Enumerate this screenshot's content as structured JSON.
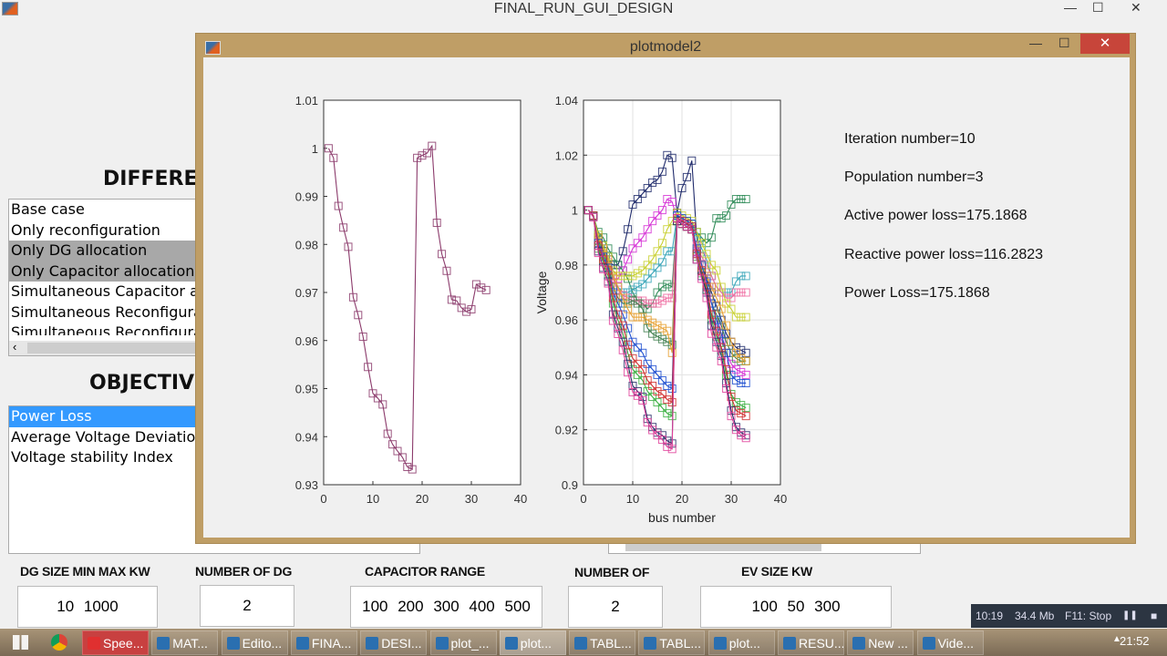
{
  "main_window": {
    "title": "FINAL_RUN_GUI_DESIGN",
    "minimize": "—",
    "maximize": "☐",
    "close": "✕"
  },
  "gui": {
    "heading1": "DIFFERE",
    "cases": [
      "Base case",
      "Only reconfiguration",
      "Only DG allocation",
      "Only Capacitor allocation",
      "Simultaneous Capacitor a",
      "Simultaneous Reconfigura",
      "Simultaneous Reconfigura"
    ],
    "selected_cases": [
      "Only DG allocation",
      "Only Capacitor allocation"
    ],
    "heading2": "OBJECTIV",
    "objectives": [
      "Power Loss",
      "Average Voltage Deviation",
      "Voltage stability Index"
    ],
    "selected_objective": "Power Loss",
    "fields": [
      {
        "label": "DG SIZE MIN MAX KW",
        "value": "10 1000"
      },
      {
        "label": "NUMBER OF DG",
        "value": "2"
      },
      {
        "label": "CAPACITOR RANGE",
        "value": "100 200 300 400 500"
      },
      {
        "label": "NUMBER OF",
        "value": "2"
      },
      {
        "label": "EV SIZE KW",
        "value": "100 50 300"
      }
    ]
  },
  "plot_window": {
    "title": "plotmodel2",
    "minimize": "—",
    "maximize": "☐",
    "close": "✕",
    "info": [
      "Iteration number=10",
      "Population number=3",
      "Active power loss=175.1868",
      "Reactive power loss=116.2823",
      "Power Loss=175.1868"
    ]
  },
  "chart_data": [
    {
      "type": "line",
      "marker": "square",
      "xlim": [
        0,
        40
      ],
      "ylim": [
        0.93,
        1.01
      ],
      "grid": false,
      "xticks": [
        "0",
        "10",
        "20",
        "30",
        "40"
      ],
      "yticks": [
        "0.93",
        "0.94",
        "0.95",
        "0.96",
        "0.97",
        "0.98",
        "0.99",
        "1",
        "1.01"
      ],
      "xlabel": "",
      "ylabel": "",
      "series": [
        {
          "color": "#8b3a6b",
          "x": [
            1,
            2,
            3,
            4,
            5,
            6,
            7,
            8,
            9,
            10,
            11,
            12,
            13,
            14,
            15,
            16,
            17,
            18,
            19,
            20,
            21,
            22,
            23,
            24,
            25,
            26,
            27,
            28,
            29,
            30,
            31,
            32,
            33
          ],
          "values": [
            1.0,
            0.998,
            0.988,
            0.9835,
            0.9795,
            0.969,
            0.9653,
            0.9608,
            0.9545,
            0.949,
            0.948,
            0.9467,
            0.9406,
            0.9384,
            0.937,
            0.9357,
            0.9337,
            0.9332,
            0.998,
            0.9985,
            0.999,
            1.0005,
            0.9845,
            0.978,
            0.9745,
            0.9685,
            0.9683,
            0.9668,
            0.966,
            0.9665,
            0.9717,
            0.971,
            0.9705
          ]
        }
      ]
    },
    {
      "type": "line",
      "marker": "square",
      "xlim": [
        0,
        40
      ],
      "ylim": [
        0.9,
        1.04
      ],
      "grid": true,
      "xticks": [
        "0",
        "10",
        "20",
        "30",
        "40"
      ],
      "yticks": [
        "0.9",
        "0.92",
        "0.94",
        "0.96",
        "0.98",
        "1",
        "1.02",
        "1.04"
      ],
      "xlabel": "bus number",
      "ylabel": "Voltage",
      "series": [
        {
          "color": "#1f2a6b",
          "values": [
            1.0,
            0.998,
            0.99,
            0.985,
            0.982,
            0.98,
            0.98,
            0.985,
            0.993,
            1.002,
            1.004,
            1.006,
            1.008,
            1.01,
            1.011,
            1.014,
            1.02,
            1.019,
            0.999,
            1.008,
            1.012,
            1.018,
            0.99,
            0.98,
            0.975,
            0.97,
            0.965,
            0.96,
            0.955,
            0.952,
            0.95,
            0.949,
            0.948
          ]
        },
        {
          "color": "#2e8b57",
          "values": [
            1.0,
            0.998,
            0.992,
            0.99,
            0.986,
            0.983,
            0.98,
            0.978,
            0.975,
            0.97,
            0.967,
            0.966,
            0.964,
            0.966,
            0.97,
            0.972,
            0.973,
            0.972,
            0.998,
            0.997,
            0.996,
            0.995,
            0.992,
            0.99,
            0.988,
            0.99,
            0.997,
            0.997,
            0.998,
            1.002,
            1.004,
            1.004,
            1.004
          ]
        },
        {
          "color": "#d633d6",
          "values": [
            1.0,
            0.998,
            0.988,
            0.984,
            0.98,
            0.975,
            0.975,
            0.978,
            0.982,
            0.986,
            0.988,
            0.99,
            0.993,
            0.996,
            0.998,
            1.0,
            1.004,
            1.003,
            0.997,
            0.995,
            0.994,
            0.993,
            0.985,
            0.978,
            0.972,
            0.962,
            0.958,
            0.953,
            0.948,
            0.944,
            0.942,
            0.941,
            0.94
          ]
        },
        {
          "color": "#3aa6b9",
          "values": [
            1.0,
            0.998,
            0.99,
            0.986,
            0.982,
            0.976,
            0.972,
            0.97,
            0.97,
            0.971,
            0.972,
            0.973,
            0.975,
            0.977,
            0.979,
            0.981,
            0.985,
            0.985,
            0.998,
            0.997,
            0.996,
            0.995,
            0.99,
            0.986,
            0.982,
            0.976,
            0.972,
            0.97,
            0.97,
            0.97,
            0.974,
            0.976,
            0.976
          ]
        },
        {
          "color": "#ef6aa0",
          "values": [
            1.0,
            0.998,
            0.989,
            0.985,
            0.981,
            0.975,
            0.971,
            0.969,
            0.968,
            0.967,
            0.967,
            0.967,
            0.966,
            0.966,
            0.966,
            0.967,
            0.968,
            0.968,
            0.996,
            0.995,
            0.994,
            0.993,
            0.987,
            0.983,
            0.98,
            0.976,
            0.972,
            0.97,
            0.968,
            0.968,
            0.97,
            0.97,
            0.97
          ]
        },
        {
          "color": "#c8d030",
          "values": [
            1.0,
            0.998,
            0.991,
            0.987,
            0.983,
            0.978,
            0.976,
            0.976,
            0.976,
            0.976,
            0.977,
            0.978,
            0.98,
            0.982,
            0.985,
            0.988,
            0.993,
            0.996,
            0.999,
            0.998,
            0.997,
            0.996,
            0.992,
            0.988,
            0.984,
            0.98,
            0.978,
            0.972,
            0.966,
            0.964,
            0.961,
            0.961,
            0.961
          ]
        },
        {
          "color": "#3f7f4f",
          "values": [
            1.0,
            0.998,
            0.989,
            0.985,
            0.98,
            0.972,
            0.968,
            0.966,
            0.966,
            0.967,
            0.966,
            0.964,
            0.957,
            0.955,
            0.954,
            0.953,
            0.952,
            0.951,
            0.997,
            0.996,
            0.995,
            0.994,
            0.984,
            0.978,
            0.972,
            0.966,
            0.962,
            0.958,
            0.952,
            0.948,
            0.946,
            0.945,
            0.945
          ]
        },
        {
          "color": "#e8a030",
          "values": [
            1.0,
            0.998,
            0.99,
            0.986,
            0.982,
            0.976,
            0.972,
            0.968,
            0.964,
            0.961,
            0.961,
            0.961,
            0.96,
            0.959,
            0.958,
            0.957,
            0.956,
            0.948,
            0.996,
            0.995,
            0.994,
            0.993,
            0.986,
            0.98,
            0.976,
            0.972,
            0.968,
            0.964,
            0.958,
            0.952,
            0.948,
            0.946,
            0.945
          ]
        },
        {
          "color": "#1f4fd0",
          "values": [
            1.0,
            0.998,
            0.988,
            0.983,
            0.979,
            0.97,
            0.966,
            0.962,
            0.957,
            0.952,
            0.95,
            0.948,
            0.944,
            0.942,
            0.94,
            0.938,
            0.936,
            0.935,
            0.998,
            0.997,
            0.996,
            0.995,
            0.986,
            0.98,
            0.974,
            0.966,
            0.96,
            0.955,
            0.948,
            0.94,
            0.938,
            0.937,
            0.937
          ]
        },
        {
          "color": "#3cb043",
          "values": [
            1.0,
            0.998,
            0.986,
            0.981,
            0.976,
            0.966,
            0.96,
            0.955,
            0.948,
            0.942,
            0.94,
            0.938,
            0.934,
            0.932,
            0.93,
            0.928,
            0.926,
            0.925,
            0.996,
            0.995,
            0.994,
            0.993,
            0.983,
            0.977,
            0.971,
            0.96,
            0.954,
            0.949,
            0.94,
            0.933,
            0.93,
            0.929,
            0.928
          ]
        },
        {
          "color": "#d03030",
          "values": [
            1.0,
            0.998,
            0.987,
            0.982,
            0.978,
            0.968,
            0.962,
            0.958,
            0.951,
            0.946,
            0.944,
            0.942,
            0.938,
            0.936,
            0.934,
            0.933,
            0.931,
            0.93,
            0.997,
            0.996,
            0.995,
            0.994,
            0.984,
            0.978,
            0.972,
            0.962,
            0.956,
            0.95,
            0.942,
            0.932,
            0.927,
            0.926,
            0.925
          ]
        },
        {
          "color": "#2a2f6a",
          "values": [
            1.0,
            0.9975,
            0.985,
            0.979,
            0.974,
            0.962,
            0.957,
            0.952,
            0.944,
            0.936,
            0.934,
            0.932,
            0.924,
            0.921,
            0.919,
            0.918,
            0.916,
            0.915,
            0.996,
            0.995,
            0.994,
            0.993,
            0.982,
            0.976,
            0.97,
            0.958,
            0.952,
            0.947,
            0.937,
            0.927,
            0.921,
            0.919,
            0.918
          ]
        },
        {
          "color": "#e0409a",
          "values": [
            1.0,
            0.9974,
            0.9844,
            0.9785,
            0.9733,
            0.9597,
            0.9549,
            0.949,
            0.9409,
            0.9337,
            0.9324,
            0.9307,
            0.9227,
            0.9199,
            0.918,
            0.9164,
            0.9138,
            0.913,
            0.997,
            0.995,
            0.994,
            0.993,
            0.982,
            0.975,
            0.968,
            0.955,
            0.95,
            0.945,
            0.935,
            0.925,
            0.92,
            0.918,
            0.917
          ]
        }
      ]
    }
  ],
  "recorder": {
    "time": "10:19",
    "size": "34.4 Mb",
    "stop_hint": "F11: Stop",
    "pause": "❚❚",
    "stop": "■"
  },
  "taskbar": {
    "items": [
      "Spee...",
      "MAT...",
      "Edito...",
      "FINA...",
      "DESI...",
      "plot_...",
      "plot...",
      "TABL...",
      "TABL...",
      "plot...",
      "RESU...",
      "New ...",
      "Vide..."
    ],
    "active_index": 6,
    "clock": "21:52",
    "tray_arrow": "▲"
  }
}
